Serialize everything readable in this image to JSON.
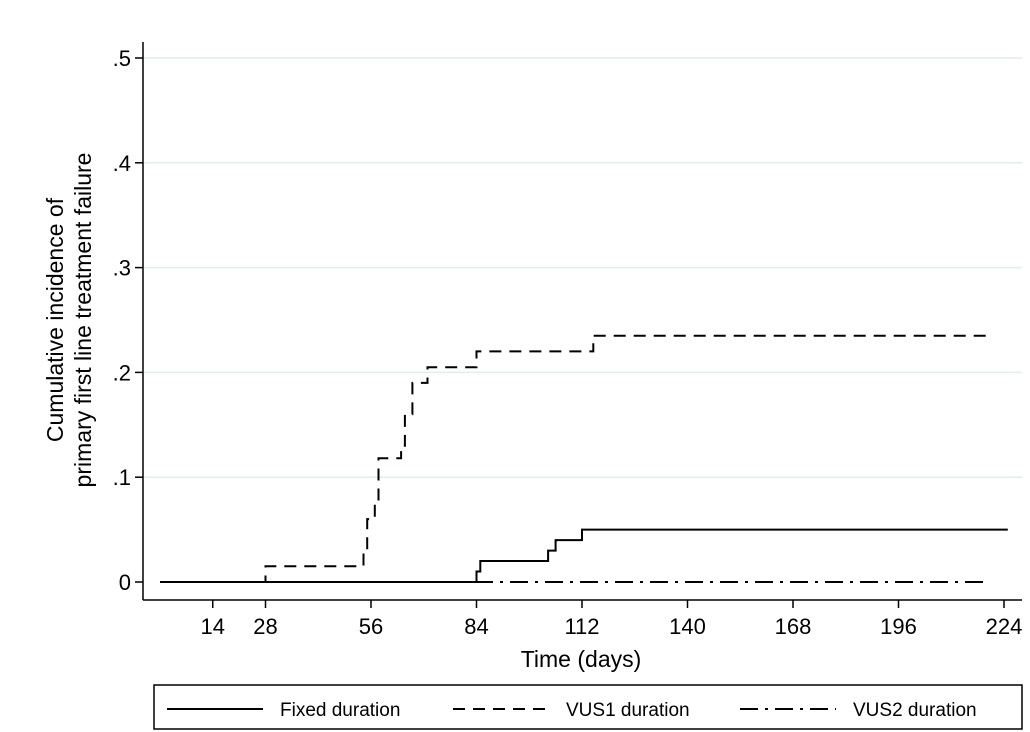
{
  "chart_data": {
    "type": "line",
    "step": true,
    "title": "",
    "xlabel": "Time (days)",
    "ylabel": [
      "Cumulative incidence of",
      "primary first line treatment failure"
    ],
    "xlim": [
      0,
      226
    ],
    "ylim": [
      0,
      0.5
    ],
    "xticks": [
      14,
      28,
      56,
      84,
      112,
      140,
      168,
      196,
      224
    ],
    "yticks": [
      {
        "value": 0,
        "label": "0"
      },
      {
        "value": 0.1,
        "label": ".1"
      },
      {
        "value": 0.2,
        "label": ".2"
      },
      {
        "value": 0.3,
        "label": ".3"
      },
      {
        "value": 0.4,
        "label": ".4"
      },
      {
        "value": 0.5,
        "label": ".5"
      }
    ],
    "grid": "horizontal",
    "legend_position": "bottom",
    "series": [
      {
        "name": "Fixed duration",
        "style": "solid",
        "points": [
          [
            0,
            0
          ],
          [
            84,
            0
          ],
          [
            84,
            0.01
          ],
          [
            85,
            0.01
          ],
          [
            85,
            0.02
          ],
          [
            103,
            0.02
          ],
          [
            103,
            0.03
          ],
          [
            105,
            0.03
          ],
          [
            105,
            0.04
          ],
          [
            112,
            0.04
          ],
          [
            112,
            0.05
          ],
          [
            225,
            0.05
          ]
        ]
      },
      {
        "name": "VUS1 duration",
        "style": "dashed",
        "points": [
          [
            0,
            0
          ],
          [
            28,
            0
          ],
          [
            28,
            0.015
          ],
          [
            54,
            0.015
          ],
          [
            54,
            0.03
          ],
          [
            55,
            0.03
          ],
          [
            55,
            0.06
          ],
          [
            57,
            0.06
          ],
          [
            57,
            0.075
          ],
          [
            58,
            0.075
          ],
          [
            58,
            0.118
          ],
          [
            64,
            0.118
          ],
          [
            64,
            0.13
          ],
          [
            65,
            0.13
          ],
          [
            65,
            0.16
          ],
          [
            67,
            0.16
          ],
          [
            67,
            0.19
          ],
          [
            71,
            0.19
          ],
          [
            71,
            0.205
          ],
          [
            84,
            0.205
          ],
          [
            84,
            0.22
          ],
          [
            115,
            0.22
          ],
          [
            115,
            0.235
          ],
          [
            220,
            0.235
          ]
        ]
      },
      {
        "name": "VUS2 duration",
        "style": "dashdot",
        "points": [
          [
            0,
            0
          ],
          [
            219,
            0
          ]
        ]
      }
    ]
  }
}
